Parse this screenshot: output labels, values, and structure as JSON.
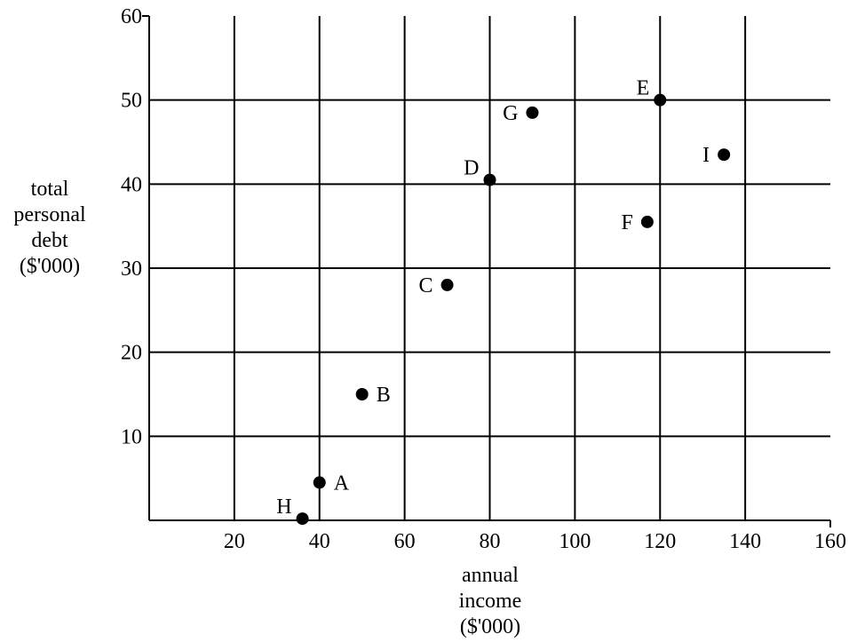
{
  "chart_data": {
    "type": "scatter",
    "title": "",
    "xlabel": [
      "annual",
      "income",
      "($'000)"
    ],
    "ylabel": [
      "total",
      "personal",
      "debt",
      "($'000)"
    ],
    "xlim": [
      0,
      160
    ],
    "ylim": [
      0,
      60
    ],
    "x_ticks": [
      20,
      40,
      60,
      80,
      100,
      120,
      140,
      160
    ],
    "y_ticks": [
      10,
      20,
      30,
      40,
      50,
      60
    ],
    "grid": true,
    "legend": "none",
    "points": [
      {
        "label": "A",
        "x": 40,
        "y": 4.5,
        "label_side": "right"
      },
      {
        "label": "B",
        "x": 50,
        "y": 15,
        "label_side": "right"
      },
      {
        "label": "C",
        "x": 70,
        "y": 28,
        "label_side": "left"
      },
      {
        "label": "D",
        "x": 80,
        "y": 40.5,
        "label_side": "upper-left"
      },
      {
        "label": "E",
        "x": 120,
        "y": 50,
        "label_side": "upper-left"
      },
      {
        "label": "F",
        "x": 117,
        "y": 35.5,
        "label_side": "left"
      },
      {
        "label": "G",
        "x": 90,
        "y": 48.5,
        "label_side": "left"
      },
      {
        "label": "H",
        "x": 36,
        "y": 0.2,
        "label_side": "upper-left"
      },
      {
        "label": "I",
        "x": 135,
        "y": 43.5,
        "label_side": "left"
      }
    ],
    "colors": {
      "grid": "#000000",
      "point": "#000000",
      "background": "#ffffff"
    }
  }
}
